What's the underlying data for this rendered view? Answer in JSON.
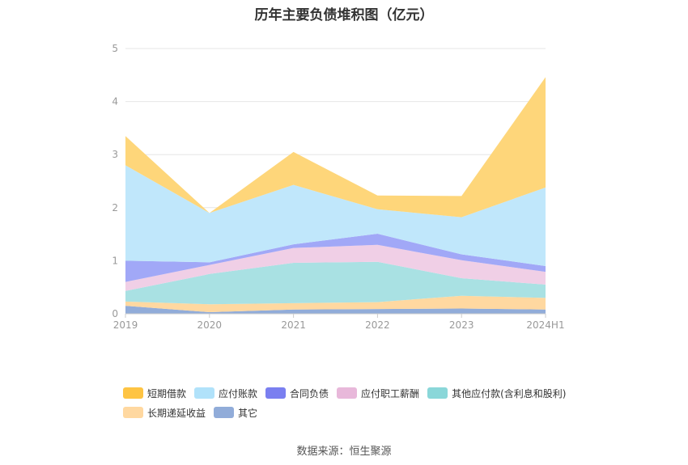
{
  "chart_data": {
    "type": "area",
    "stacked": true,
    "title": "历年主要负债堆积图（亿元）",
    "categories": [
      "2019",
      "2020",
      "2021",
      "2022",
      "2023",
      "2024H1"
    ],
    "ylim": [
      0,
      5
    ],
    "yticks": [
      "0",
      "1",
      "2",
      "3",
      "4",
      "5"
    ],
    "grid": true,
    "legend_position": "bottom",
    "series": [
      {
        "name": "其它",
        "color": "#91acd9",
        "values": [
          0.15,
          0.03,
          0.08,
          0.09,
          0.1,
          0.08
        ]
      },
      {
        "name": "长期递延收益",
        "color": "#ffd8a0",
        "values": [
          0.08,
          0.15,
          0.12,
          0.13,
          0.24,
          0.22
        ]
      },
      {
        "name": "其他应付款(含利息和股利)",
        "color": "#a9e1e3",
        "values": [
          0.2,
          0.57,
          0.76,
          0.76,
          0.33,
          0.25
        ]
      },
      {
        "name": "应付职工薪酬",
        "color": "#f0cfe6",
        "values": [
          0.17,
          0.17,
          0.28,
          0.32,
          0.34,
          0.24
        ]
      },
      {
        "name": "合同负债",
        "color": "#a1a8f7",
        "values": [
          0.4,
          0.05,
          0.07,
          0.21,
          0.11,
          0.11
        ]
      },
      {
        "name": "应付账款",
        "color": "#c0e7fb",
        "values": [
          1.8,
          0.93,
          1.12,
          0.46,
          0.7,
          1.48
        ]
      },
      {
        "name": "短期借款",
        "color": "#fed67a",
        "values": [
          0.55,
          0.0,
          0.62,
          0.26,
          0.4,
          2.08
        ]
      }
    ],
    "legend_order": [
      "短期借款",
      "应付账款",
      "合同负债",
      "应付职工薪酬",
      "其他应付款(含利息和股利)",
      "长期递延收益",
      "其它"
    ],
    "legend_colors": {
      "短期借款": "#fec443",
      "应付账款": "#b1e2fa",
      "合同负债": "#7a7ff0",
      "应付职工薪酬": "#e8b8da",
      "其他应付款(含利息和股利)": "#8ad7d9",
      "长期递延收益": "#ffd8a0",
      "其它": "#91acd9"
    }
  },
  "footer": {
    "source": "数据来源：恒生聚源"
  }
}
